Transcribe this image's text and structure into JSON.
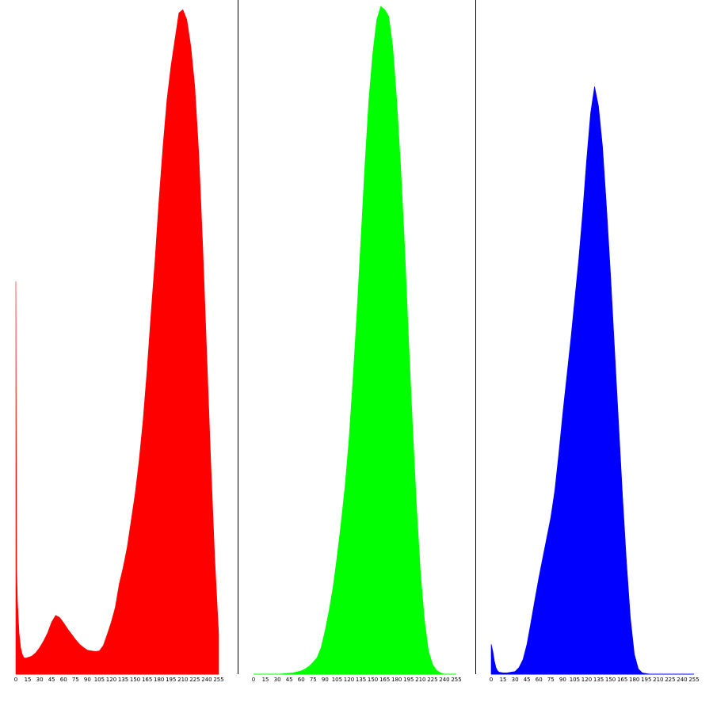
{
  "chart_data": [
    {
      "type": "area",
      "name": "red",
      "color": "#ff0000",
      "xlim": [
        0,
        255
      ],
      "ylim": [
        0,
        1000
      ],
      "x_ticks": [
        0,
        15,
        30,
        45,
        60,
        75,
        90,
        105,
        120,
        135,
        150,
        165,
        180,
        195,
        210,
        225,
        240,
        255
      ],
      "points": [
        [
          0,
          588
        ],
        [
          1,
          156
        ],
        [
          2,
          110
        ],
        [
          4,
          62
        ],
        [
          6,
          40
        ],
        [
          8,
          30
        ],
        [
          10,
          25
        ],
        [
          12,
          24
        ],
        [
          15,
          25
        ],
        [
          20,
          27
        ],
        [
          25,
          32
        ],
        [
          30,
          40
        ],
        [
          35,
          50
        ],
        [
          40,
          62
        ],
        [
          45,
          78
        ],
        [
          50,
          88
        ],
        [
          55,
          85
        ],
        [
          60,
          77
        ],
        [
          65,
          68
        ],
        [
          70,
          60
        ],
        [
          75,
          52
        ],
        [
          80,
          45
        ],
        [
          85,
          40
        ],
        [
          90,
          36
        ],
        [
          95,
          35
        ],
        [
          100,
          34
        ],
        [
          105,
          35
        ],
        [
          110,
          43
        ],
        [
          115,
          60
        ],
        [
          120,
          78
        ],
        [
          125,
          100
        ],
        [
          130,
          135
        ],
        [
          135,
          160
        ],
        [
          140,
          190
        ],
        [
          145,
          230
        ],
        [
          150,
          270
        ],
        [
          155,
          320
        ],
        [
          160,
          380
        ],
        [
          165,
          455
        ],
        [
          170,
          540
        ],
        [
          175,
          620
        ],
        [
          180,
          710
        ],
        [
          185,
          790
        ],
        [
          190,
          860
        ],
        [
          195,
          910
        ],
        [
          200,
          950
        ],
        [
          205,
          990
        ],
        [
          210,
          995
        ],
        [
          215,
          980
        ],
        [
          220,
          940
        ],
        [
          225,
          880
        ],
        [
          230,
          780
        ],
        [
          235,
          640
        ],
        [
          240,
          480
        ],
        [
          245,
          320
        ],
        [
          250,
          175
        ],
        [
          255,
          60
        ]
      ]
    },
    {
      "type": "area",
      "name": "green",
      "color": "#00ff00",
      "xlim": [
        0,
        255
      ],
      "ylim": [
        0,
        1000
      ],
      "x_ticks": [
        0,
        15,
        30,
        45,
        60,
        75,
        90,
        105,
        120,
        135,
        150,
        165,
        180,
        195,
        210,
        225,
        240,
        255
      ],
      "points": [
        [
          0,
          0
        ],
        [
          10,
          0
        ],
        [
          20,
          0
        ],
        [
          30,
          0
        ],
        [
          40,
          1
        ],
        [
          50,
          2
        ],
        [
          60,
          5
        ],
        [
          65,
          8
        ],
        [
          70,
          12
        ],
        [
          75,
          18
        ],
        [
          80,
          25
        ],
        [
          85,
          40
        ],
        [
          90,
          65
        ],
        [
          95,
          95
        ],
        [
          100,
          130
        ],
        [
          105,
          175
        ],
        [
          110,
          225
        ],
        [
          115,
          280
        ],
        [
          120,
          350
        ],
        [
          125,
          440
        ],
        [
          130,
          540
        ],
        [
          135,
          650
        ],
        [
          140,
          760
        ],
        [
          145,
          860
        ],
        [
          150,
          930
        ],
        [
          155,
          980
        ],
        [
          160,
          1000
        ],
        [
          165,
          995
        ],
        [
          170,
          985
        ],
        [
          175,
          940
        ],
        [
          180,
          860
        ],
        [
          185,
          760
        ],
        [
          190,
          640
        ],
        [
          195,
          500
        ],
        [
          200,
          370
        ],
        [
          205,
          250
        ],
        [
          210,
          150
        ],
        [
          215,
          80
        ],
        [
          220,
          35
        ],
        [
          225,
          15
        ],
        [
          230,
          6
        ],
        [
          235,
          2
        ],
        [
          240,
          0
        ],
        [
          255,
          0
        ]
      ]
    },
    {
      "type": "area",
      "name": "blue",
      "color": "#0000ff",
      "xlim": [
        0,
        255
      ],
      "ylim": [
        0,
        1000
      ],
      "x_ticks": [
        0,
        15,
        30,
        45,
        60,
        75,
        90,
        105,
        120,
        135,
        150,
        165,
        180,
        195,
        210,
        225,
        240,
        255
      ],
      "points": [
        [
          0,
          45
        ],
        [
          2,
          35
        ],
        [
          4,
          20
        ],
        [
          6,
          10
        ],
        [
          8,
          5
        ],
        [
          10,
          3
        ],
        [
          15,
          2
        ],
        [
          20,
          2
        ],
        [
          25,
          3
        ],
        [
          30,
          4
        ],
        [
          35,
          10
        ],
        [
          40,
          22
        ],
        [
          45,
          45
        ],
        [
          50,
          78
        ],
        [
          55,
          112
        ],
        [
          60,
          145
        ],
        [
          65,
          175
        ],
        [
          70,
          205
        ],
        [
          75,
          235
        ],
        [
          80,
          275
        ],
        [
          85,
          330
        ],
        [
          90,
          390
        ],
        [
          95,
          445
        ],
        [
          100,
          500
        ],
        [
          105,
          560
        ],
        [
          110,
          620
        ],
        [
          115,
          690
        ],
        [
          120,
          770
        ],
        [
          125,
          840
        ],
        [
          130,
          880
        ],
        [
          135,
          850
        ],
        [
          140,
          790
        ],
        [
          145,
          700
        ],
        [
          150,
          600
        ],
        [
          155,
          490
        ],
        [
          160,
          380
        ],
        [
          165,
          270
        ],
        [
          170,
          170
        ],
        [
          175,
          85
        ],
        [
          180,
          30
        ],
        [
          185,
          8
        ],
        [
          190,
          2
        ],
        [
          200,
          0
        ],
        [
          255,
          0
        ]
      ]
    }
  ]
}
